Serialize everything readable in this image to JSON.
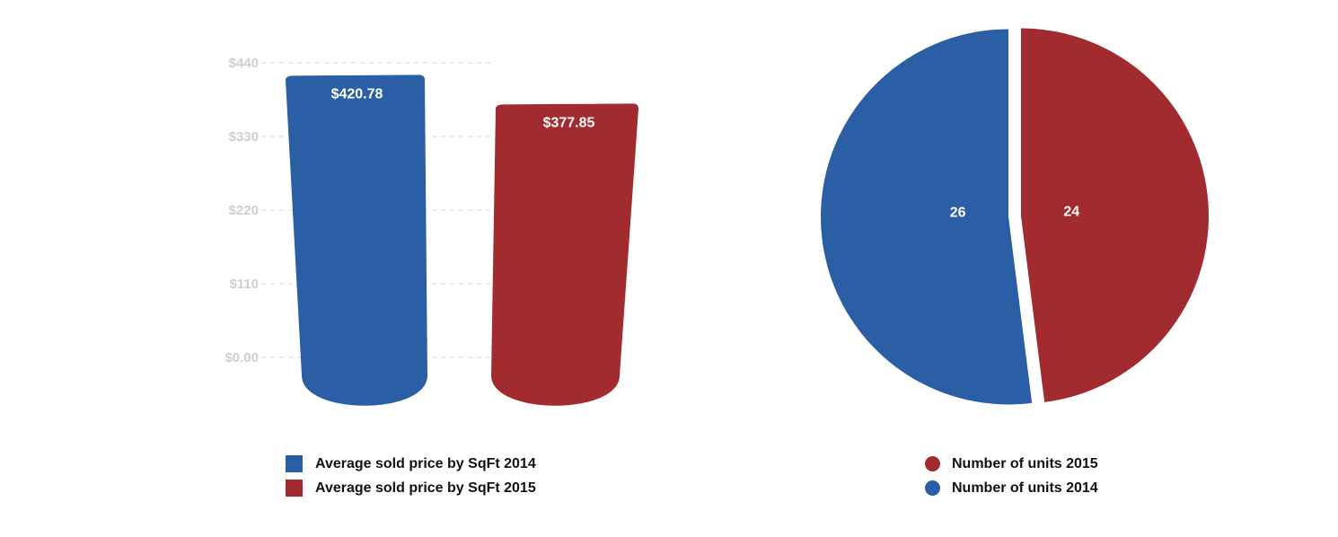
{
  "colors": {
    "blue": "#2b5fa5",
    "red": "#a12b2e",
    "grid": "#d6d6d6",
    "tick": "#cfcfcf"
  },
  "chart_data": [
    {
      "type": "bar",
      "categories": [
        "Average sold price by SqFt 2014",
        "Average sold price by SqFt 2015"
      ],
      "values": [
        420.78,
        377.85
      ],
      "data_labels": [
        "$420.78",
        "$377.85"
      ],
      "y_ticks": [
        "$0.00",
        "$110",
        "$220",
        "$330",
        "$440"
      ],
      "ylim": [
        0,
        440
      ],
      "grid": true,
      "legend": [
        "Average sold price by SqFt 2014",
        "Average sold price by SqFt 2015"
      ],
      "legend_position": "bottom",
      "colors": [
        "#2b5fa5",
        "#a12b2e"
      ]
    },
    {
      "type": "pie",
      "labels": [
        "Number of units 2015",
        "Number of units 2014"
      ],
      "values": [
        24,
        26
      ],
      "data_labels": [
        "24",
        "26"
      ],
      "legend": [
        "Number of units 2015",
        "Number of units 2014"
      ],
      "legend_position": "bottom",
      "colors": [
        "#a12b2e",
        "#2b5fa5"
      ]
    }
  ]
}
